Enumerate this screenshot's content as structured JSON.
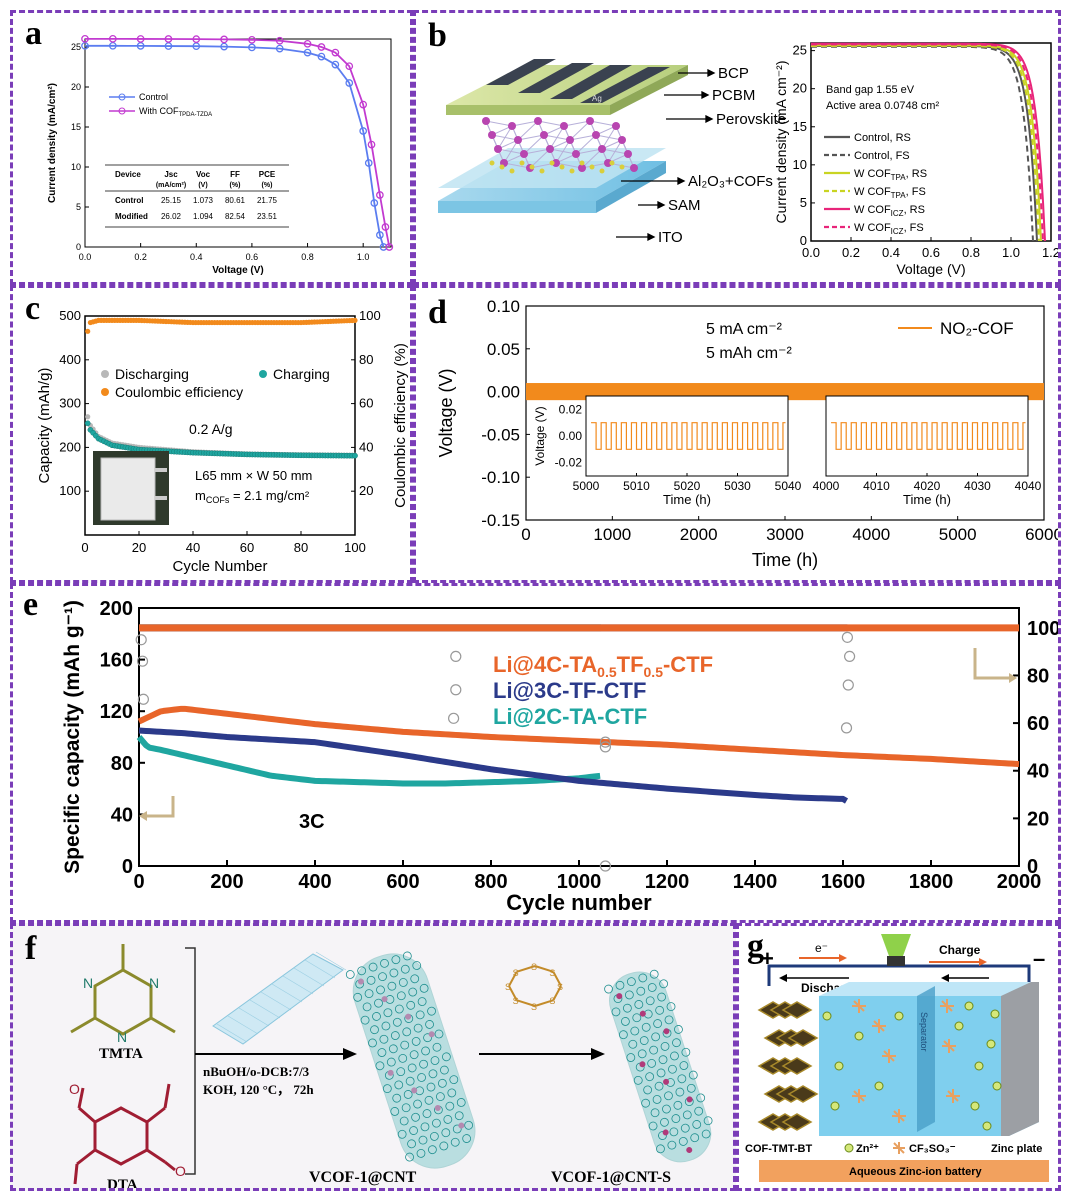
{
  "colors": {
    "frame": "#7a3db8",
    "control_blue": "#5b7df0",
    "cof_magenta": "#c23ad0",
    "orange": "#f28a1c",
    "teal": "#1fa6a0",
    "navy": "#2b3a8a",
    "orange_red": "#e8652a",
    "lime": "#c9d422",
    "pink": "#e8257a"
  },
  "panels": {
    "a": {
      "label": "a",
      "ylabel": "Current density (mA/cm²)",
      "xlabel": "Voltage (V)",
      "legend": [
        "Control",
        "With COF"
      ],
      "legend_sub": "TPDA-TZDA",
      "table": {
        "headers": [
          "Device",
          "Jsc (mA/cm²)",
          "Voc (V)",
          "FF (%)",
          "PCE (%)"
        ],
        "rows": [
          [
            "Control",
            "25.15",
            "1.073",
            "80.61",
            "21.75"
          ],
          [
            "Modified",
            "26.02",
            "1.094",
            "82.54",
            "23.51"
          ]
        ]
      }
    },
    "b": {
      "label": "b",
      "layers": [
        "BCP",
        "PCBM",
        "Perovskite",
        "Al₂O₃+COFs",
        "SAM",
        "ITO"
      ],
      "ag_label": "Ag",
      "ylabel": "Current density (mA cm⁻²)",
      "xlabel": "Voltage (V)",
      "note1": "Band gap 1.55 eV",
      "note2": "Active area 0.0748 cm²",
      "legend": [
        "Control, RS",
        "Control, FS",
        "W COF, RS",
        "W COF, FS",
        "W COF, RS",
        "W COF, FS"
      ],
      "legend_subs": [
        "",
        "",
        "TPA",
        "TPA",
        "ICZ",
        "ICZ"
      ]
    },
    "c": {
      "label": "c",
      "ylabel_left": "Capacity (mAh/g)",
      "ylabel_right": "Coulombic efficiency (%)",
      "xlabel": "Cycle Number",
      "legend": [
        "Discharging",
        "Charging",
        "Coulombic efficiency"
      ],
      "rate": "0.2 A/g",
      "size_text": "L65 mm × W 50 mm",
      "loading_text": "= 2.1 mg/cm²",
      "loading_var": "m",
      "loading_sub": "COFs"
    },
    "d": {
      "label": "d",
      "ylabel": "Voltage (V)",
      "xlabel": "Time (h)",
      "cond1": "5 mA cm⁻²",
      "cond2": "5 mAh cm⁻²",
      "legend": "NO₂-COF",
      "inset_ylabel": "Voltage (V)",
      "inset_xlabel": "Time (h)"
    },
    "e": {
      "label": "e",
      "ylabel": "Specific capacity (mAh g⁻¹)",
      "xlabel": "Cycle number",
      "series": [
        "Li@4C-TA0.5TF0.5-CTF",
        "Li@3C-TF-CTF",
        "Li@2C-TA-CTF"
      ],
      "rate_label": "3C"
    },
    "f": {
      "label": "f",
      "tmta": "TMTA",
      "dta": "DTA",
      "cond1": "nBuOH/o-DCB:7/3",
      "cond2": "KOH, 120 °C， 72h",
      "product1": "VCOF-1@CNT",
      "product2": "VCOF-1@CNT-S"
    },
    "g": {
      "label": "g",
      "plus": "+",
      "minus": "–",
      "electron": "e⁻",
      "charge": "Charge",
      "discharge": "Discharge",
      "separator": "Separator",
      "cathode": "COF-TMT-BT",
      "zn": "Zn²⁺",
      "anion": "CF₃SO₃⁻",
      "anode": "Zinc plate",
      "battery": "Aqueous Zinc-ion battery"
    }
  },
  "chart_data": [
    {
      "type": "line",
      "panel": "a",
      "xlabel": "Voltage (V)",
      "ylabel": "Current density (mA/cm²)",
      "xlim": [
        0,
        1.1
      ],
      "ylim": [
        0,
        26
      ],
      "x_ticks": [
        0.0,
        0.2,
        0.4,
        0.6,
        0.8,
        1.0
      ],
      "y_ticks": [
        0,
        5,
        10,
        15,
        20,
        25
      ],
      "series": [
        {
          "name": "Control",
          "x": [
            0,
            0.1,
            0.2,
            0.3,
            0.4,
            0.5,
            0.6,
            0.7,
            0.8,
            0.85,
            0.9,
            0.95,
            1.0,
            1.02,
            1.04,
            1.06,
            1.073
          ],
          "y": [
            25.15,
            25.15,
            25.14,
            25.12,
            25.1,
            25.05,
            24.95,
            24.8,
            24.3,
            23.8,
            22.8,
            20.5,
            14.5,
            10.5,
            5.5,
            1.5,
            0
          ]
        },
        {
          "name": "With COF",
          "x": [
            0,
            0.1,
            0.2,
            0.3,
            0.4,
            0.5,
            0.6,
            0.7,
            0.8,
            0.85,
            0.9,
            0.95,
            1.0,
            1.03,
            1.06,
            1.08,
            1.094
          ],
          "y": [
            26.02,
            26.02,
            26.01,
            26.0,
            25.98,
            25.95,
            25.9,
            25.78,
            25.4,
            25.0,
            24.3,
            22.6,
            17.8,
            12.8,
            6.5,
            2.5,
            0
          ]
        }
      ]
    },
    {
      "type": "line",
      "panel": "b",
      "xlabel": "Voltage (V)",
      "ylabel": "Current density (mA cm⁻²)",
      "xlim": [
        0,
        1.2
      ],
      "ylim": [
        0,
        26
      ],
      "x_ticks": [
        0.0,
        0.2,
        0.4,
        0.6,
        0.8,
        1.0,
        1.2
      ],
      "y_ticks": [
        0,
        5,
        10,
        15,
        20,
        25
      ],
      "series": [
        {
          "name": "Control, RS",
          "voc": 1.13,
          "jsc": 25.6
        },
        {
          "name": "Control, FS",
          "voc": 1.11,
          "jsc": 25.5
        },
        {
          "name": "W COF TPA, RS",
          "voc": 1.15,
          "jsc": 25.7
        },
        {
          "name": "W COF TPA, FS",
          "voc": 1.14,
          "jsc": 25.6
        },
        {
          "name": "W COF ICZ, RS",
          "voc": 1.17,
          "jsc": 25.9
        },
        {
          "name": "W COF ICZ, FS",
          "voc": 1.16,
          "jsc": 25.8
        }
      ]
    },
    {
      "type": "scatter",
      "panel": "c",
      "xlabel": "Cycle Number",
      "ylabel": "Capacity (mAh/g)",
      "y2label": "Coulombic efficiency (%)",
      "xlim": [
        0,
        100
      ],
      "ylim": [
        0,
        500
      ],
      "y2lim": [
        0,
        100
      ],
      "x_ticks": [
        0,
        20,
        40,
        60,
        80,
        100
      ],
      "y_ticks": [
        100,
        200,
        300,
        400,
        500
      ],
      "y2_ticks": [
        20,
        40,
        60,
        80,
        100
      ],
      "series": [
        {
          "name": "Discharging",
          "x": [
            1,
            2,
            5,
            10,
            20,
            40,
            60,
            80,
            100
          ],
          "y": [
            270,
            250,
            225,
            210,
            200,
            190,
            185,
            183,
            182
          ]
        },
        {
          "name": "Charging",
          "x": [
            1,
            2,
            5,
            10,
            20,
            40,
            60,
            80,
            100
          ],
          "y": [
            255,
            240,
            220,
            205,
            195,
            188,
            184,
            182,
            181
          ]
        },
        {
          "name": "Coulombic efficiency",
          "x": [
            1,
            2,
            5,
            20,
            40,
            60,
            80,
            100
          ],
          "y": [
            93,
            97,
            98,
            98,
            97,
            97,
            97,
            98
          ]
        }
      ]
    },
    {
      "type": "line",
      "panel": "d",
      "xlabel": "Time (h)",
      "ylabel": "Voltage (V)",
      "xlim": [
        0,
        6000
      ],
      "ylim": [
        -0.15,
        0.1
      ],
      "x_ticks": [
        0,
        1000,
        2000,
        3000,
        4000,
        5000,
        6000
      ],
      "y_ticks": [
        -0.15,
        -0.1,
        -0.05,
        0.0,
        0.05,
        0.1
      ],
      "series": [
        {
          "name": "NO₂-COF",
          "amplitude": 0.01
        }
      ],
      "insets": [
        {
          "xlim": [
            5000,
            5040
          ],
          "x_ticks": [
            5000,
            5010,
            5020,
            5030,
            5040
          ],
          "y_ticks": [
            0.02,
            0.0,
            -0.02
          ],
          "amplitude": 0.01
        },
        {
          "xlim": [
            4000,
            4040
          ],
          "x_ticks": [
            4000,
            4010,
            4020,
            4030,
            4040
          ],
          "y_ticks": [],
          "amplitude": 0.01
        }
      ]
    },
    {
      "type": "line",
      "panel": "e",
      "xlabel": "Cycle number",
      "ylabel": "Specific capacity (mAh g⁻¹)",
      "xlim": [
        0,
        2000
      ],
      "ylim": [
        0,
        200
      ],
      "y2lim": [
        0,
        110
      ],
      "x_ticks": [
        0,
        200,
        400,
        600,
        800,
        1000,
        1200,
        1400,
        1600,
        1800,
        2000
      ],
      "y_ticks": [
        0,
        40,
        80,
        120,
        160,
        200
      ],
      "y2_ticks": [
        0,
        20,
        40,
        60,
        80,
        100
      ],
      "series": [
        {
          "name": "Li@4C-TA0.5TF0.5-CTF",
          "x": [
            0,
            50,
            100,
            200,
            400,
            600,
            800,
            1000,
            1200,
            1400,
            1600,
            1800,
            2000
          ],
          "y": [
            112,
            120,
            122,
            118,
            110,
            104,
            100,
            97,
            94,
            90,
            86,
            83,
            79
          ],
          "ce": 100
        },
        {
          "name": "Li@3C-TF-CTF",
          "x": [
            0,
            50,
            100,
            200,
            400,
            600,
            800,
            1000,
            1200,
            1400,
            1500,
            1600,
            1610
          ],
          "y": [
            105,
            104,
            103,
            100,
            96,
            86,
            75,
            66,
            60,
            55,
            53,
            52,
            50
          ],
          "ce": 100
        },
        {
          "name": "Li@2C-TA-CTF",
          "x": [
            0,
            20,
            50,
            100,
            200,
            300,
            400,
            500,
            600,
            700,
            800,
            900,
            1000,
            1050
          ],
          "y": [
            100,
            92,
            90,
            86,
            78,
            70,
            66,
            65,
            64,
            64,
            65,
            66,
            68,
            70
          ],
          "ce": 100
        }
      ]
    }
  ]
}
